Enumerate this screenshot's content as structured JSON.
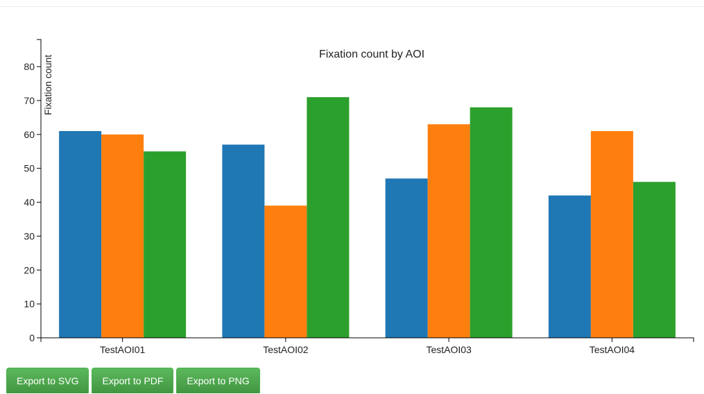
{
  "chart_data": {
    "type": "bar",
    "title": "Fixation count by AOI",
    "xlabel": "",
    "ylabel": "Fixation count",
    "categories": [
      "TestAOI01",
      "TestAOI02",
      "TestAOI03",
      "TestAOI04"
    ],
    "series": [
      {
        "color": "#1f77b4",
        "values": [
          61,
          57,
          47,
          42
        ]
      },
      {
        "color": "#ff7f0e",
        "values": [
          60,
          39,
          63,
          61
        ]
      },
      {
        "color": "#2ca02c",
        "values": [
          55,
          71,
          68,
          46
        ]
      }
    ],
    "ylim": [
      0,
      88
    ],
    "yticks": [
      0,
      10,
      20,
      30,
      40,
      50,
      60,
      70,
      80
    ],
    "grid": false,
    "legend": "none"
  },
  "toolbar": {
    "export_svg_label": "Export to SVG",
    "export_pdf_label": "Export to PDF",
    "export_png_label": "Export to PNG",
    "button_color": "#5cb85c"
  }
}
